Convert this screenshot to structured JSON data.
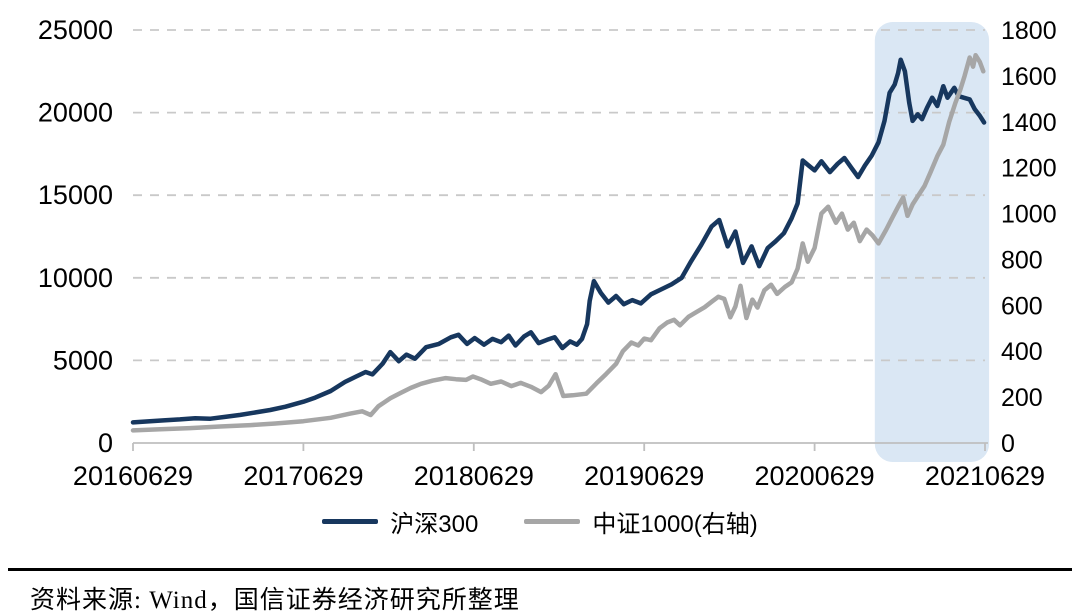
{
  "source_note": {
    "text": "资料来源: Wind，国信证券经济研究所整理"
  },
  "chart_data": {
    "type": "line",
    "title": "",
    "grid": "horizontal-dashed",
    "legend_position": "bottom-center",
    "background_color": "#FFFFFF",
    "gridline_color": "#C9C9C9",
    "axis_line_color": "#BFBFBF",
    "text_color": "#000000",
    "x_axis": {
      "tick_labels": [
        "20160629",
        "20170629",
        "20180629",
        "20190629",
        "20200629",
        "20210629"
      ]
    },
    "left_y_axis": {
      "min": 0,
      "max": 25000,
      "tick_step": 5000,
      "tick_labels": [
        "25000",
        "20000",
        "15000",
        "10000",
        "5000",
        "0"
      ]
    },
    "right_y_axis": {
      "min": 0,
      "max": 1800,
      "tick_step": 200,
      "tick_labels": [
        "1800",
        "1600",
        "1400",
        "1200",
        "1000",
        "800",
        "600",
        "400",
        "200",
        "0"
      ]
    },
    "highlight_region": {
      "x_from": 0.8706,
      "x_to": 1.0047,
      "color": "#DAE7F4",
      "description": "light blue rounded band over roughly Nov 2020 - Jul 2021"
    },
    "series": [
      {
        "id": "hs300",
        "name": "沪深300",
        "axis": "left",
        "color": "#17375E",
        "line_width": 4.5,
        "points": [
          [
            0.0,
            1250
          ],
          [
            0.02,
            1320
          ],
          [
            0.038,
            1380
          ],
          [
            0.055,
            1430
          ],
          [
            0.073,
            1500
          ],
          [
            0.091,
            1470
          ],
          [
            0.108,
            1580
          ],
          [
            0.126,
            1700
          ],
          [
            0.144,
            1850
          ],
          [
            0.161,
            2000
          ],
          [
            0.179,
            2200
          ],
          [
            0.2,
            2500
          ],
          [
            0.214,
            2750
          ],
          [
            0.232,
            3150
          ],
          [
            0.249,
            3700
          ],
          [
            0.261,
            4000
          ],
          [
            0.273,
            4300
          ],
          [
            0.281,
            4150
          ],
          [
            0.293,
            4800
          ],
          [
            0.302,
            5500
          ],
          [
            0.312,
            4950
          ],
          [
            0.321,
            5350
          ],
          [
            0.331,
            5100
          ],
          [
            0.344,
            5800
          ],
          [
            0.359,
            6000
          ],
          [
            0.373,
            6400
          ],
          [
            0.382,
            6550
          ],
          [
            0.392,
            6000
          ],
          [
            0.401,
            6350
          ],
          [
            0.412,
            5950
          ],
          [
            0.422,
            6300
          ],
          [
            0.432,
            6100
          ],
          [
            0.441,
            6500
          ],
          [
            0.449,
            5900
          ],
          [
            0.459,
            6450
          ],
          [
            0.467,
            6700
          ],
          [
            0.476,
            6050
          ],
          [
            0.486,
            6250
          ],
          [
            0.495,
            6400
          ],
          [
            0.504,
            5750
          ],
          [
            0.513,
            6150
          ],
          [
            0.521,
            5950
          ],
          [
            0.527,
            6300
          ],
          [
            0.533,
            7200
          ],
          [
            0.536,
            8600
          ],
          [
            0.541,
            9800
          ],
          [
            0.549,
            9100
          ],
          [
            0.558,
            8500
          ],
          [
            0.567,
            8900
          ],
          [
            0.576,
            8400
          ],
          [
            0.586,
            8650
          ],
          [
            0.596,
            8450
          ],
          [
            0.608,
            9000
          ],
          [
            0.62,
            9300
          ],
          [
            0.632,
            9600
          ],
          [
            0.644,
            10000
          ],
          [
            0.655,
            11000
          ],
          [
            0.667,
            12000
          ],
          [
            0.679,
            13100
          ],
          [
            0.688,
            13500
          ],
          [
            0.698,
            11900
          ],
          [
            0.707,
            12800
          ],
          [
            0.716,
            10900
          ],
          [
            0.726,
            11900
          ],
          [
            0.735,
            10700
          ],
          [
            0.745,
            11800
          ],
          [
            0.754,
            12200
          ],
          [
            0.764,
            12700
          ],
          [
            0.773,
            13600
          ],
          [
            0.78,
            14500
          ],
          [
            0.786,
            17100
          ],
          [
            0.793,
            16800
          ],
          [
            0.8,
            16500
          ],
          [
            0.808,
            17050
          ],
          [
            0.818,
            16400
          ],
          [
            0.827,
            16900
          ],
          [
            0.835,
            17250
          ],
          [
            0.844,
            16600
          ],
          [
            0.851,
            16100
          ],
          [
            0.859,
            16800
          ],
          [
            0.867,
            17400
          ],
          [
            0.875,
            18200
          ],
          [
            0.882,
            19500
          ],
          [
            0.888,
            21200
          ],
          [
            0.894,
            21700
          ],
          [
            0.898,
            22400
          ],
          [
            0.901,
            23200
          ],
          [
            0.906,
            22500
          ],
          [
            0.911,
            20600
          ],
          [
            0.915,
            19500
          ],
          [
            0.921,
            19900
          ],
          [
            0.926,
            19600
          ],
          [
            0.932,
            20300
          ],
          [
            0.938,
            20900
          ],
          [
            0.944,
            20400
          ],
          [
            0.951,
            21600
          ],
          [
            0.956,
            20900
          ],
          [
            0.964,
            21500
          ],
          [
            0.969,
            21000
          ],
          [
            0.975,
            20900
          ],
          [
            0.982,
            20800
          ],
          [
            0.988,
            20200
          ],
          [
            0.994,
            19800
          ],
          [
            0.999,
            19400
          ]
        ]
      },
      {
        "id": "zz1000",
        "name": "中证1000(右轴)",
        "axis": "right",
        "color": "#A6A6A6",
        "line_width": 4.5,
        "points": [
          [
            0.0,
            55
          ],
          [
            0.032,
            60
          ],
          [
            0.067,
            65
          ],
          [
            0.102,
            72
          ],
          [
            0.138,
            78
          ],
          [
            0.167,
            85
          ],
          [
            0.2,
            95
          ],
          [
            0.232,
            110
          ],
          [
            0.255,
            128
          ],
          [
            0.269,
            138
          ],
          [
            0.279,
            122
          ],
          [
            0.288,
            160
          ],
          [
            0.302,
            195
          ],
          [
            0.314,
            218
          ],
          [
            0.326,
            240
          ],
          [
            0.338,
            258
          ],
          [
            0.352,
            272
          ],
          [
            0.367,
            283
          ],
          [
            0.379,
            278
          ],
          [
            0.391,
            275
          ],
          [
            0.399,
            290
          ],
          [
            0.408,
            278
          ],
          [
            0.42,
            258
          ],
          [
            0.432,
            268
          ],
          [
            0.444,
            248
          ],
          [
            0.455,
            262
          ],
          [
            0.467,
            245
          ],
          [
            0.479,
            222
          ],
          [
            0.488,
            250
          ],
          [
            0.496,
            300
          ],
          [
            0.505,
            205
          ],
          [
            0.516,
            208
          ],
          [
            0.532,
            215
          ],
          [
            0.544,
            260
          ],
          [
            0.555,
            300
          ],
          [
            0.567,
            345
          ],
          [
            0.575,
            400
          ],
          [
            0.585,
            438
          ],
          [
            0.593,
            425
          ],
          [
            0.6,
            455
          ],
          [
            0.608,
            448
          ],
          [
            0.618,
            500
          ],
          [
            0.627,
            525
          ],
          [
            0.635,
            537
          ],
          [
            0.642,
            513
          ],
          [
            0.652,
            550
          ],
          [
            0.661,
            570
          ],
          [
            0.671,
            592
          ],
          [
            0.68,
            618
          ],
          [
            0.687,
            637
          ],
          [
            0.694,
            628
          ],
          [
            0.701,
            548
          ],
          [
            0.707,
            595
          ],
          [
            0.713,
            685
          ],
          [
            0.72,
            545
          ],
          [
            0.727,
            625
          ],
          [
            0.733,
            590
          ],
          [
            0.741,
            665
          ],
          [
            0.749,
            690
          ],
          [
            0.756,
            650
          ],
          [
            0.765,
            680
          ],
          [
            0.773,
            700
          ],
          [
            0.78,
            760
          ],
          [
            0.786,
            870
          ],
          [
            0.792,
            790
          ],
          [
            0.8,
            850
          ],
          [
            0.808,
            1000
          ],
          [
            0.816,
            1030
          ],
          [
            0.825,
            960
          ],
          [
            0.832,
            1000
          ],
          [
            0.839,
            930
          ],
          [
            0.846,
            960
          ],
          [
            0.853,
            880
          ],
          [
            0.861,
            930
          ],
          [
            0.868,
            905
          ],
          [
            0.875,
            870
          ],
          [
            0.884,
            930
          ],
          [
            0.891,
            980
          ],
          [
            0.898,
            1030
          ],
          [
            0.904,
            1070
          ],
          [
            0.909,
            990
          ],
          [
            0.915,
            1040
          ],
          [
            0.922,
            1080
          ],
          [
            0.929,
            1120
          ],
          [
            0.936,
            1180
          ],
          [
            0.944,
            1250
          ],
          [
            0.951,
            1300
          ],
          [
            0.958,
            1400
          ],
          [
            0.965,
            1480
          ],
          [
            0.971,
            1540
          ],
          [
            0.976,
            1600
          ],
          [
            0.982,
            1680
          ],
          [
            0.986,
            1640
          ],
          [
            0.989,
            1690
          ],
          [
            0.994,
            1660
          ],
          [
            0.998,
            1620
          ]
        ]
      }
    ]
  }
}
